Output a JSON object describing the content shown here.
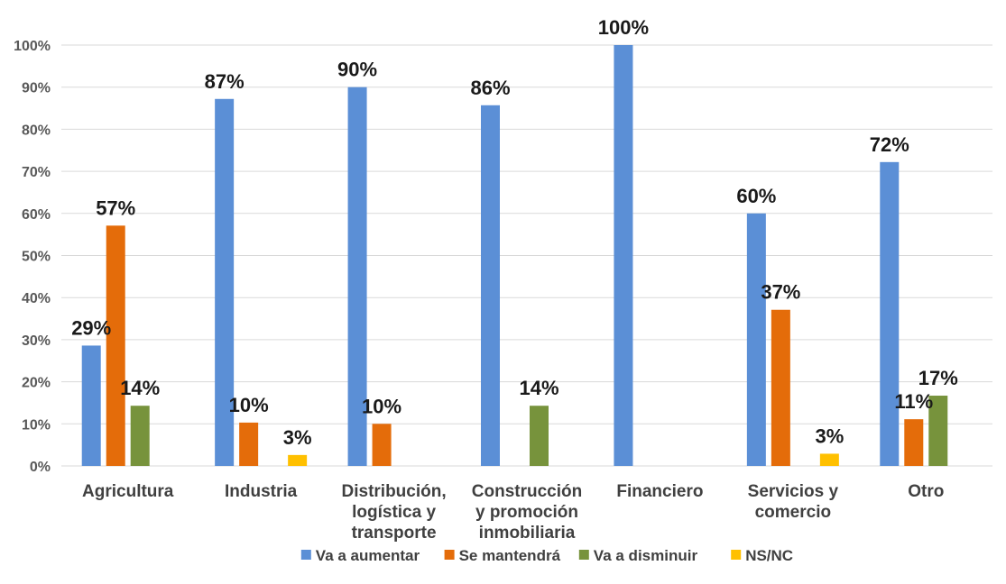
{
  "chart_data": {
    "type": "bar",
    "categories": [
      [
        "Agricultura"
      ],
      [
        "Industria"
      ],
      [
        "Distribución,",
        "logística y",
        "transporte"
      ],
      [
        "Construcción",
        "y promoción",
        "inmobiliaria"
      ],
      [
        "Financiero"
      ],
      [
        "Servicios y",
        "comercio"
      ],
      [
        "Otro"
      ]
    ],
    "series": [
      {
        "name": "Va a aumentar",
        "color": "#5B8FD6",
        "values": [
          0.286,
          0.872,
          0.9,
          0.857,
          1.0,
          0.6,
          0.722
        ],
        "labels": [
          "29%",
          "87%",
          "90%",
          "86%",
          "100%",
          "60%",
          "72%"
        ]
      },
      {
        "name": "Se mantendrá",
        "color": "#E46C0A",
        "values": [
          0.571,
          0.103,
          0.1,
          null,
          null,
          0.371,
          0.111
        ],
        "labels": [
          "57%",
          "10%",
          "10%",
          null,
          null,
          "37%",
          "11%"
        ]
      },
      {
        "name": "Va a disminuir",
        "color": "#77933C",
        "values": [
          0.143,
          null,
          null,
          0.143,
          null,
          null,
          0.167
        ],
        "labels": [
          "14%",
          null,
          null,
          "14%",
          null,
          null,
          "17%"
        ]
      },
      {
        "name": "NS/NC",
        "color": "#FFC000",
        "values": [
          null,
          0.026,
          null,
          null,
          null,
          0.029,
          null
        ],
        "labels": [
          null,
          "3%",
          null,
          null,
          null,
          "3%",
          null
        ]
      }
    ],
    "ylim": [
      0,
      1
    ],
    "yticks": [
      "0%",
      "10%",
      "20%",
      "30%",
      "40%",
      "50%",
      "60%",
      "70%",
      "80%",
      "90%",
      "100%"
    ],
    "grid": true,
    "legend_position": "bottom"
  }
}
